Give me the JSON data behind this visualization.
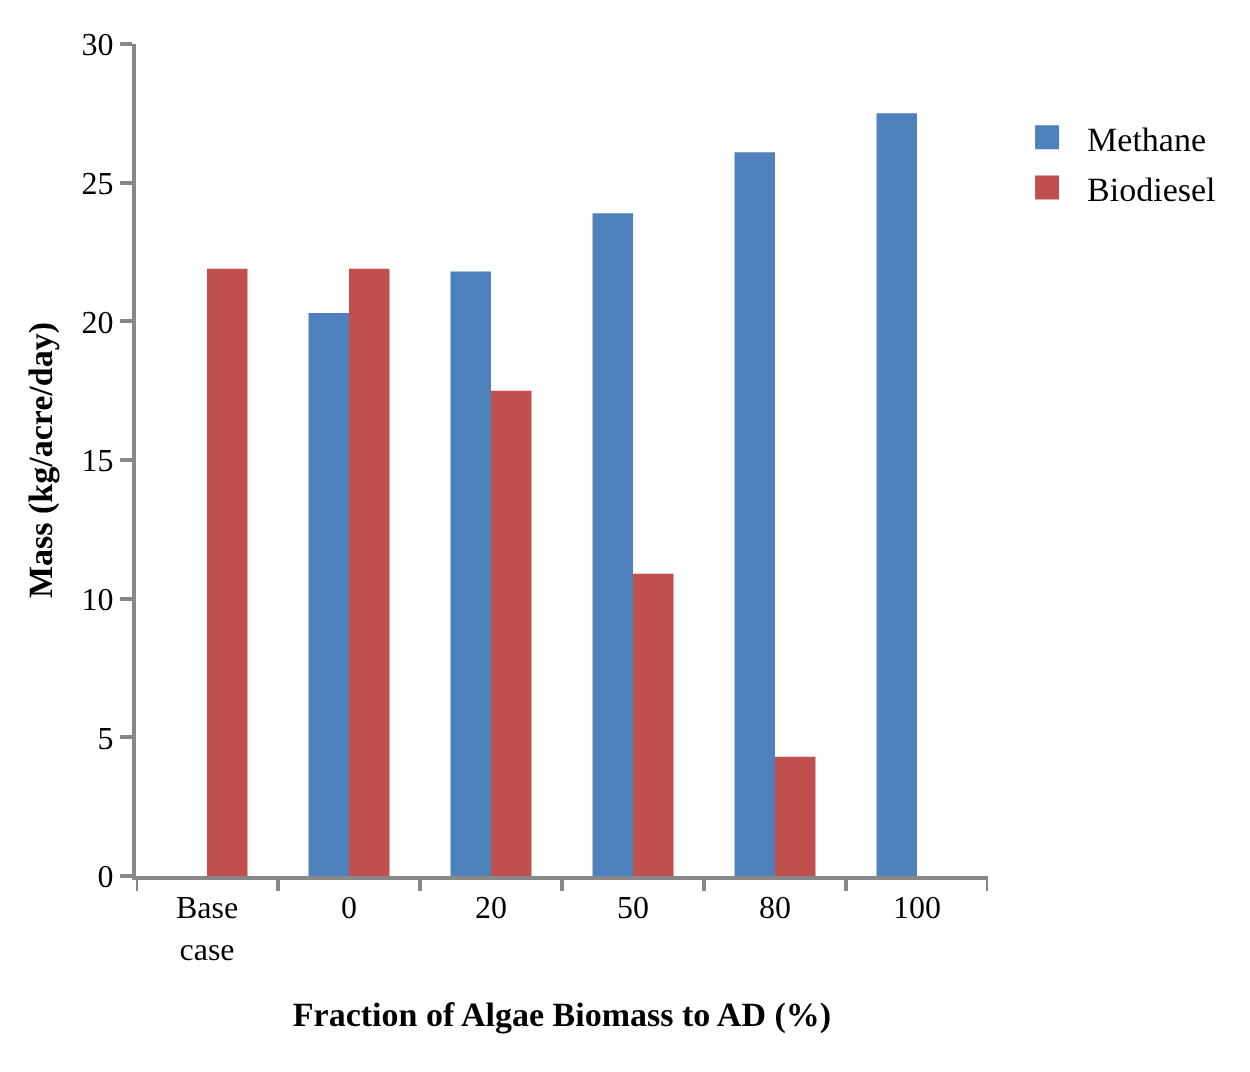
{
  "chart_data": {
    "type": "bar",
    "xlabel": "Fraction of Algae Biomass to AD (%)",
    "ylabel": "Mass (kg/acre/day)",
    "categories": [
      "Base case",
      "0",
      "20",
      "50",
      "80",
      "100"
    ],
    "series": [
      {
        "name": "Methane",
        "color": "#4f81bd",
        "values": [
          null,
          20.3,
          21.8,
          23.9,
          26.1,
          27.5
        ]
      },
      {
        "name": "Biodiesel",
        "color": "#c0504d",
        "values": [
          21.9,
          21.9,
          17.5,
          10.9,
          4.3,
          null
        ]
      }
    ],
    "ylim": [
      0,
      30
    ],
    "yticks": [
      0,
      5,
      10,
      15,
      20,
      25,
      30
    ],
    "grid": false,
    "legend": "top right"
  }
}
